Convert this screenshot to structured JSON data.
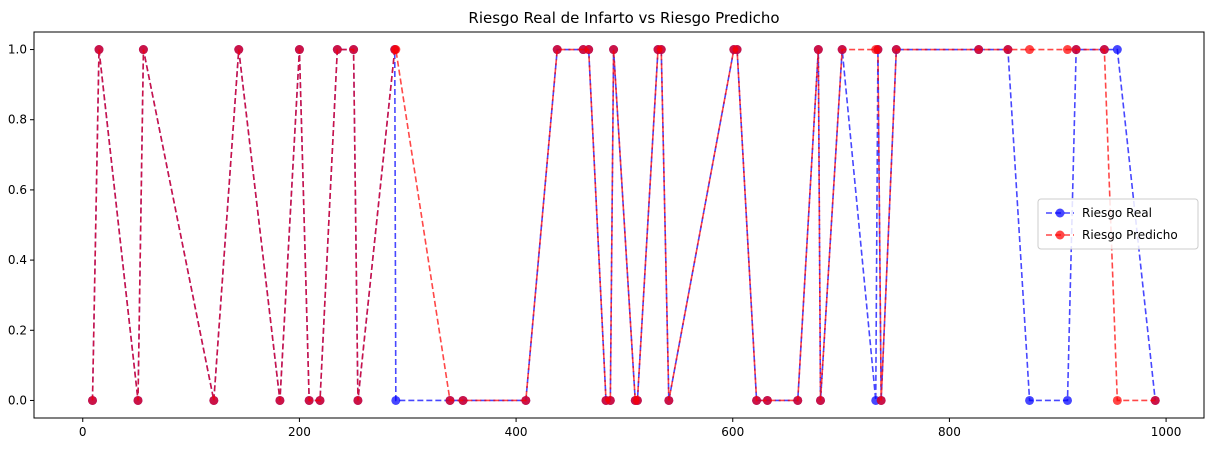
{
  "chart_data": {
    "type": "line",
    "title": "Riesgo Real de Infarto vs Riesgo Predicho",
    "xlabel": "",
    "ylabel": "",
    "xlim": [
      -45,
      1035
    ],
    "ylim": [
      -0.05,
      1.05
    ],
    "x_ticks": [
      0,
      200,
      400,
      600,
      800,
      1000
    ],
    "y_ticks": [
      0.0,
      0.2,
      0.4,
      0.6,
      0.8,
      1.0
    ],
    "x_tick_labels": [
      "0",
      "200",
      "400",
      "600",
      "800",
      "1000"
    ],
    "y_tick_labels": [
      "0.0",
      "0.2",
      "0.4",
      "0.6",
      "0.8",
      "1.0"
    ],
    "grid": false,
    "legend_position": "center-right",
    "x": [
      9,
      15,
      51,
      56,
      121,
      144,
      182,
      200,
      209,
      219,
      235,
      250,
      254,
      288,
      289,
      339,
      351,
      409,
      438,
      462,
      467,
      483,
      487,
      490,
      510,
      512,
      531,
      534,
      541,
      601,
      604,
      622,
      632,
      660,
      679,
      681,
      701,
      732,
      734,
      737,
      751,
      827,
      854,
      874,
      909,
      917,
      943,
      955,
      990
    ],
    "series": [
      {
        "name": "Riesgo Real",
        "color": "#0000ff",
        "values": [
          0,
          1,
          0,
          1,
          0,
          1,
          0,
          1,
          0,
          0,
          1,
          1,
          0,
          1,
          0,
          0,
          0,
          0,
          1,
          1,
          1,
          0,
          0,
          1,
          0,
          0,
          1,
          1,
          0,
          1,
          1,
          0,
          0,
          0,
          1,
          0,
          1,
          0,
          1,
          0,
          1,
          1,
          1,
          0,
          0,
          1,
          1,
          1,
          0
        ]
      },
      {
        "name": "Riesgo Predicho",
        "color": "#ff0000",
        "values": [
          0,
          1,
          0,
          1,
          0,
          1,
          0,
          1,
          0,
          0,
          1,
          1,
          0,
          1,
          1,
          0,
          0,
          0,
          1,
          1,
          1,
          0,
          0,
          1,
          0,
          0,
          1,
          1,
          0,
          1,
          1,
          0,
          0,
          0,
          1,
          0,
          1,
          1,
          1,
          0,
          1,
          1,
          1,
          1,
          1,
          1,
          1,
          0,
          0
        ]
      }
    ]
  }
}
